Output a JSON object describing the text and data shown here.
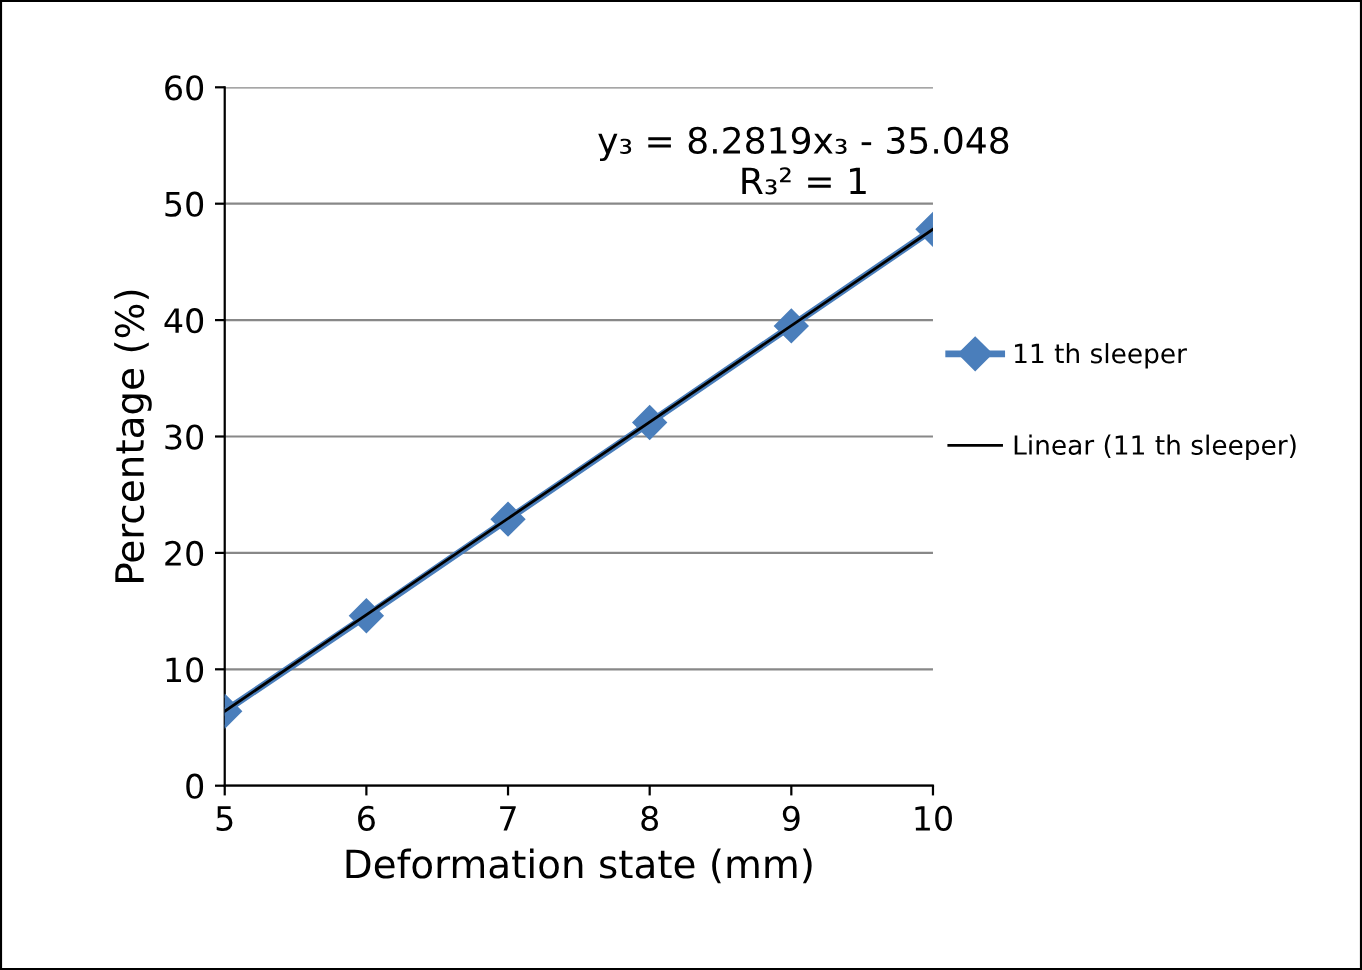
{
  "chart_data": {
    "type": "line",
    "xlabel": "Deformation state (mm)",
    "ylabel": "Percentage (%)",
    "x": [
      5,
      6,
      7,
      8,
      9,
      10
    ],
    "series": [
      {
        "name": "11 th sleeper",
        "color": "#4a7ebb",
        "values": [
          6.4,
          14.6,
          22.9,
          31.2,
          39.5,
          47.8
        ],
        "marker": "diamond"
      },
      {
        "name": "Linear (11 th sleeper)",
        "color": "#000000",
        "x": [
          5,
          10
        ],
        "values": [
          6.4,
          47.8
        ],
        "marker": "none"
      }
    ],
    "xlim": [
      5,
      10
    ],
    "xticks": [
      5,
      6,
      7,
      8,
      9,
      10
    ],
    "ylim": [
      0,
      60
    ],
    "yticks": [
      0,
      10,
      20,
      30,
      40,
      50,
      60
    ],
    "grid": "y",
    "legend": "right",
    "annotations": [
      {
        "text": "y₃ = 8.2819x₃ - 35.048\nR₃² = 1",
        "x": 10,
        "y": 47.8
      }
    ]
  }
}
